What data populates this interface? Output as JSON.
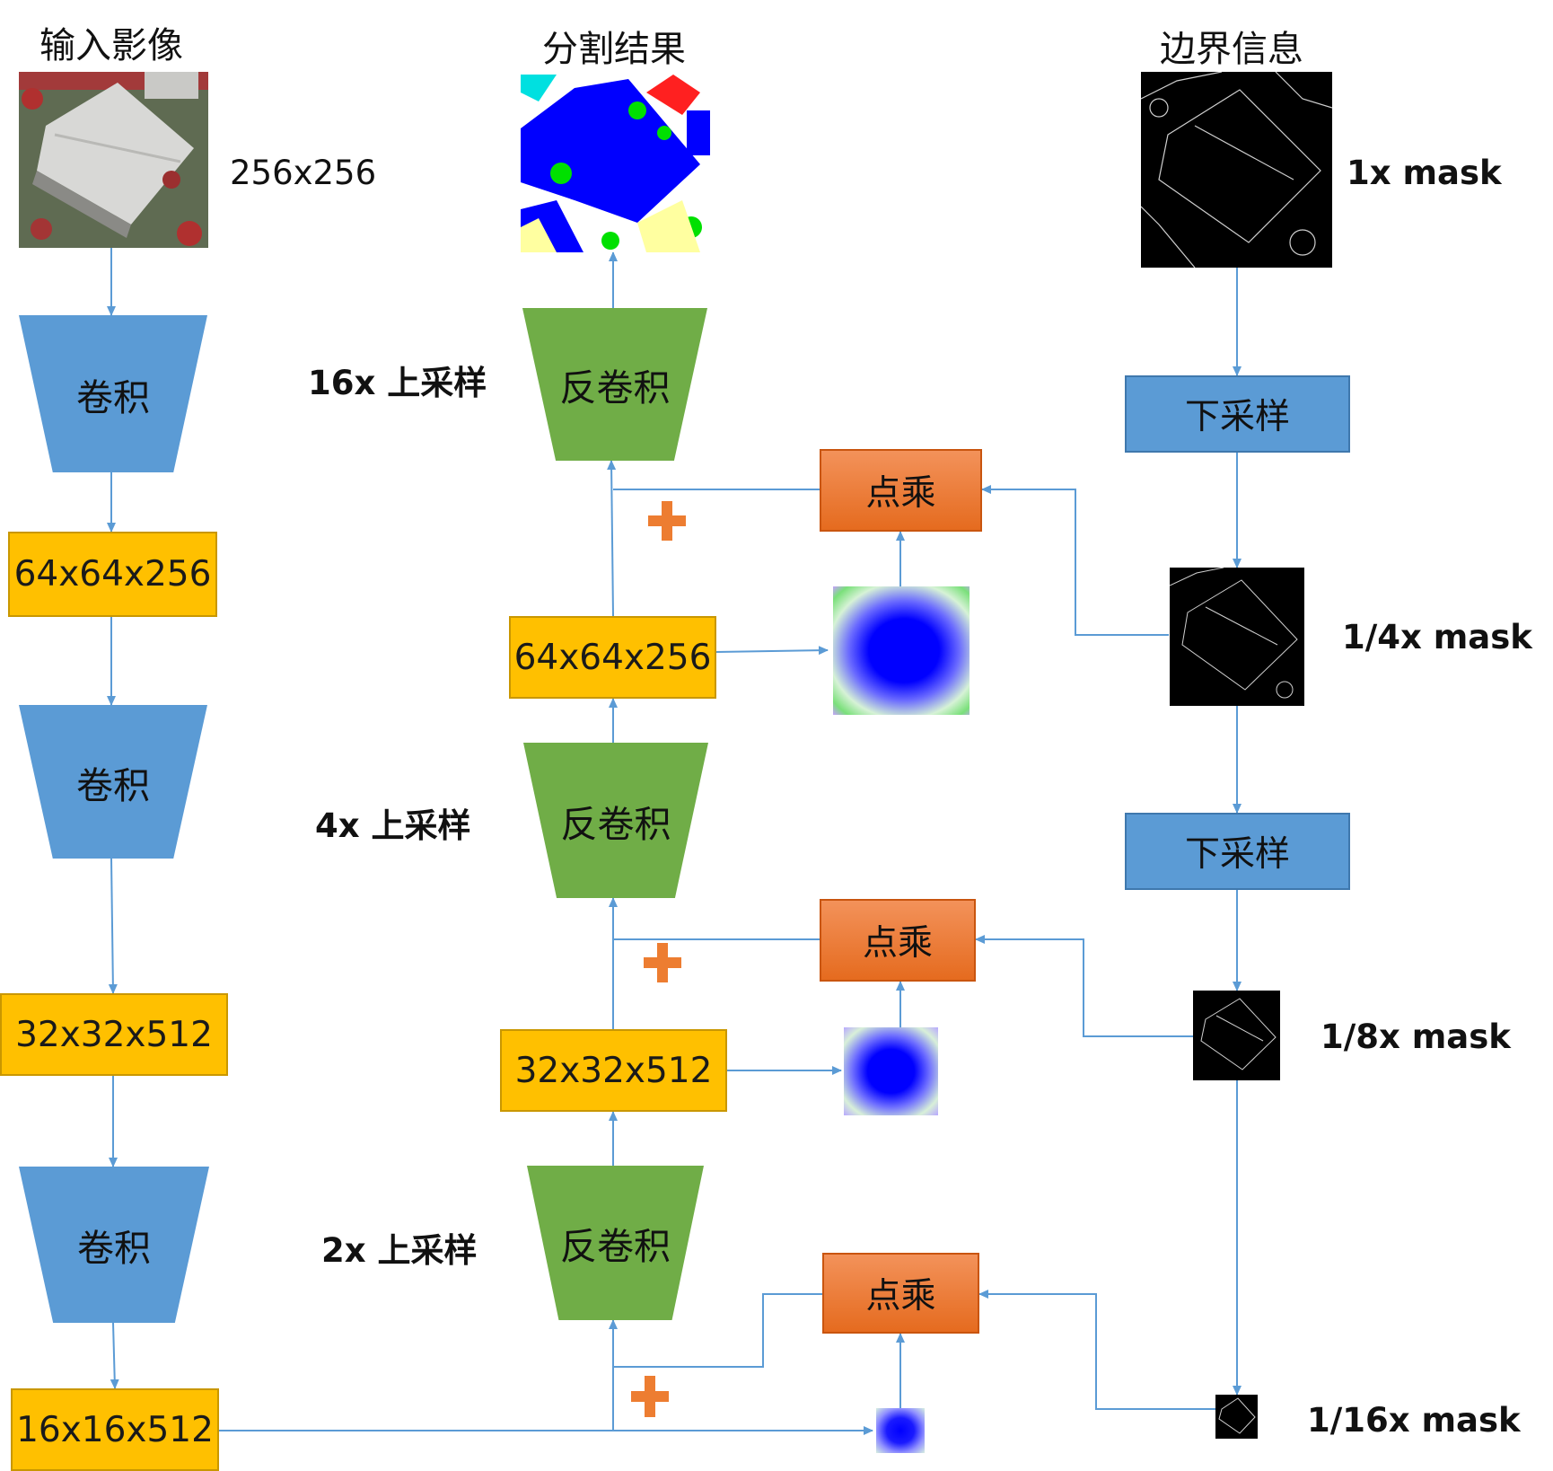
{
  "headers": {
    "input": "输入影像",
    "seg": "分割结果",
    "edge": "边界信息"
  },
  "input_size": "256x256",
  "encoder": {
    "conv_label": "卷积",
    "features": [
      "64x64x256",
      "32x32x512",
      "16x16x512"
    ]
  },
  "decoder": {
    "deconv_label": "反卷积",
    "features": [
      "64x64x256",
      "32x32x512"
    ],
    "upsample": [
      "16x 上采样",
      "4x 上采样",
      "2x 上采样"
    ]
  },
  "edge_branch": {
    "downsample_label": "下采样",
    "masks": [
      "1x mask",
      "1/4x mask",
      "1/8x mask",
      "1/16x mask"
    ]
  },
  "multiply_label": "点乘",
  "colors": {
    "conv": "#5b9bd5",
    "deconv": "#70ad47",
    "feature": "#ffc000",
    "multiply": "#ed7d31",
    "arrow": "#5b9bd5",
    "plus": "#ed7d31"
  }
}
